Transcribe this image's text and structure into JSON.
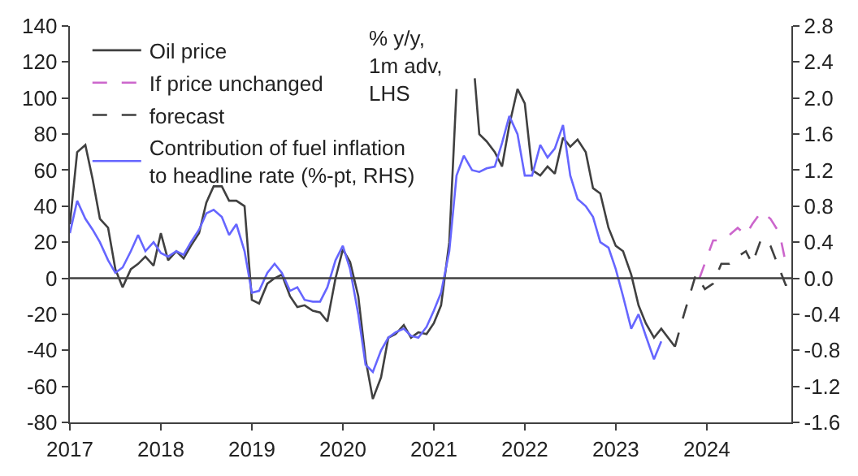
{
  "chart_data": {
    "type": "line",
    "xlim": [
      2017,
      2024.93
    ],
    "xticks": [
      2017,
      2018,
      2019,
      2020,
      2021,
      2022,
      2023,
      2024
    ],
    "ylim": [
      -80,
      140
    ],
    "yticks": [
      -80,
      -60,
      -40,
      -20,
      0,
      20,
      40,
      60,
      80,
      100,
      120,
      140
    ],
    "y2lim": [
      -1.6,
      2.8
    ],
    "y2ticks": [
      {
        "value": -1.6,
        "label": "-1.6"
      },
      {
        "value": -1.2,
        "label": "-1.2"
      },
      {
        "value": -0.8,
        "label": "-0.8"
      },
      {
        "value": -0.4,
        "label": "-0.4"
      },
      {
        "value": 0,
        "label": "0.0"
      },
      {
        "value": 0.4,
        "label": "0.4"
      },
      {
        "value": 0.8,
        "label": "0.8"
      },
      {
        "value": 1.2,
        "label": "1.2"
      },
      {
        "value": 1.6,
        "label": "1.6"
      },
      {
        "value": 2.0,
        "label": "2.0"
      },
      {
        "value": 2.4,
        "label": "2.4"
      },
      {
        "value": 2.8,
        "label": "2.8"
      }
    ],
    "legend": "top left",
    "marker": "none",
    "ref_lines": [
      {
        "axis": "y",
        "value": 0,
        "color": "#404040"
      }
    ],
    "annotations": [
      "% y/y,\n1m adv,\nLHS"
    ],
    "series": [
      {
        "name": "Oil price",
        "color": "#404040",
        "line_style": "solid",
        "x": [
          2017.0,
          2017.08,
          2017.17,
          2017.25,
          2017.33,
          2017.42,
          2017.5,
          2017.58,
          2017.67,
          2017.75,
          2017.83,
          2017.92,
          2018.0,
          2018.08,
          2018.17,
          2018.25,
          2018.33,
          2018.42,
          2018.5,
          2018.58,
          2018.67,
          2018.75,
          2018.83,
          2018.92,
          2019.0,
          2019.08,
          2019.17,
          2019.25,
          2019.33,
          2019.42,
          2019.5,
          2019.58,
          2019.67,
          2019.75,
          2019.83,
          2019.92,
          2020.0,
          2020.08,
          2020.17,
          2020.25,
          2020.33,
          2020.42,
          2020.5,
          2020.58,
          2020.67,
          2020.75,
          2020.83,
          2020.92,
          2021.0,
          2021.08,
          2021.17,
          2021.25,
          2021.33,
          2021.45,
          2021.5,
          2021.58,
          2021.67,
          2021.75,
          2021.83,
          2021.92,
          2022.0,
          2022.08,
          2022.17,
          2022.25,
          2022.33,
          2022.42,
          2022.5,
          2022.58,
          2022.67,
          2022.75,
          2022.83,
          2022.92,
          2023.0,
          2023.08,
          2023.17,
          2023.25,
          2023.33,
          2023.42,
          2023.5,
          2023.65
        ],
        "values": [
          30,
          70,
          74,
          55,
          33,
          28,
          5,
          -5,
          5,
          8,
          12,
          7,
          25,
          10,
          15,
          11,
          18,
          25,
          42,
          51,
          51,
          43,
          43,
          40,
          -12,
          -14,
          -3,
          0,
          2,
          -10,
          -16,
          -15,
          -18,
          -19,
          -24,
          0,
          16,
          9,
          -10,
          -45,
          -67,
          -55,
          -33,
          -31,
          -26,
          -33,
          -30,
          -31,
          -25,
          -15,
          20,
          105,
          null,
          111,
          80,
          76,
          70,
          62,
          85,
          105,
          97,
          60,
          57,
          62,
          58,
          78,
          73,
          77,
          70,
          50,
          47,
          28,
          18,
          15,
          2,
          -15,
          -25,
          -33,
          -28,
          -38
        ]
      },
      {
        "name": "If price unchanged",
        "color": "#cc66cc",
        "line_style": "dashed",
        "x": [
          2023.92,
          2024.07,
          2024.16,
          2024.25,
          2024.34,
          2024.43,
          2024.5,
          2024.6,
          2024.7,
          2024.8,
          2024.87,
          2024.93
        ],
        "values": [
          0,
          21,
          21,
          24,
          28,
          24,
          30,
          37,
          33,
          25,
          8,
          7
        ]
      },
      {
        "name": "forecast",
        "color": "#404040",
        "line_style": "dashed",
        "x": [
          2023.65,
          2023.75,
          2023.88,
          2023.98,
          2024.07,
          2024.16,
          2024.25,
          2024.34,
          2024.43,
          2024.5,
          2024.6,
          2024.7,
          2024.8,
          2024.87,
          2024.93
        ],
        "values": [
          -38,
          -20,
          2,
          -6,
          -3,
          8,
          8,
          12,
          15,
          8,
          22,
          18,
          5,
          -4,
          4
        ]
      },
      {
        "name": "Contribution of fuel inflation\nto headline rate (%-pt, RHS)",
        "color": "#6666ff",
        "line_style": "solid",
        "axis": "y2",
        "x": [
          2017.0,
          2017.08,
          2017.17,
          2017.25,
          2017.33,
          2017.42,
          2017.5,
          2017.58,
          2017.67,
          2017.75,
          2017.83,
          2017.92,
          2018.0,
          2018.08,
          2018.17,
          2018.25,
          2018.33,
          2018.42,
          2018.5,
          2018.58,
          2018.67,
          2018.75,
          2018.83,
          2018.92,
          2019.0,
          2019.08,
          2019.17,
          2019.25,
          2019.33,
          2019.42,
          2019.5,
          2019.58,
          2019.67,
          2019.75,
          2019.83,
          2019.92,
          2020.0,
          2020.08,
          2020.17,
          2020.25,
          2020.33,
          2020.42,
          2020.5,
          2020.58,
          2020.67,
          2020.75,
          2020.83,
          2020.92,
          2021.0,
          2021.08,
          2021.17,
          2021.25,
          2021.33,
          2021.42,
          2021.5,
          2021.58,
          2021.67,
          2021.75,
          2021.83,
          2021.92,
          2022.0,
          2022.08,
          2022.17,
          2022.25,
          2022.33,
          2022.42,
          2022.5,
          2022.58,
          2022.67,
          2022.75,
          2022.83,
          2022.92,
          2023.0,
          2023.08,
          2023.17,
          2023.25,
          2023.33,
          2023.42,
          2023.5
        ],
        "values": [
          0.5,
          0.86,
          0.66,
          0.54,
          0.4,
          0.2,
          0.06,
          0.12,
          0.3,
          0.48,
          0.3,
          0.4,
          0.28,
          0.24,
          0.3,
          0.26,
          0.4,
          0.54,
          0.72,
          0.76,
          0.68,
          0.48,
          0.6,
          0.3,
          -0.16,
          -0.14,
          0.06,
          0.16,
          0.06,
          -0.14,
          -0.1,
          -0.24,
          -0.26,
          -0.26,
          -0.1,
          0.2,
          0.36,
          0.1,
          -0.4,
          -0.96,
          -1.04,
          -0.8,
          -0.66,
          -0.6,
          -0.56,
          -0.64,
          -0.66,
          -0.54,
          -0.36,
          -0.16,
          0.3,
          1.14,
          1.36,
          1.2,
          1.18,
          1.22,
          1.24,
          1.5,
          1.8,
          1.6,
          1.14,
          1.14,
          1.48,
          1.34,
          1.44,
          1.7,
          1.14,
          0.88,
          0.8,
          0.68,
          0.4,
          0.34,
          0.1,
          -0.2,
          -0.56,
          -0.4,
          -0.64,
          -0.9,
          -0.7
        ]
      }
    ]
  }
}
